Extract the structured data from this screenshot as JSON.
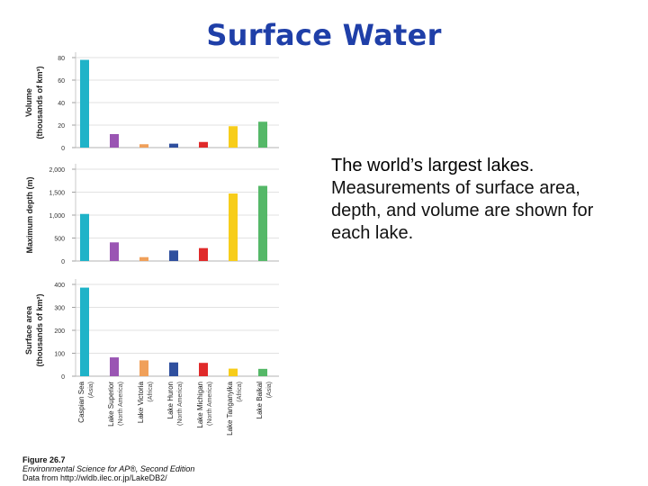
{
  "slide": {
    "title": "Surface Water",
    "text_heading": "The world’s largest lakes.",
    "text_body": "Measurements of surface area, depth, and volume are shown for each lake."
  },
  "caption": {
    "figure": "Figure 26.7",
    "book": "Environmental Science for AP®, Second Edition",
    "source": "Data from http://wldb.ilec.or.jp/LakeDB2/"
  },
  "chart_data": {
    "type": "bar",
    "categories": [
      {
        "name": "Caspian Sea",
        "region": "(Asia)",
        "color": "#1fb3c8"
      },
      {
        "name": "Lake Superior",
        "region": "(North America)",
        "color": "#9a55b3"
      },
      {
        "name": "Lake Victoria",
        "region": "(Africa)",
        "color": "#f0a05a"
      },
      {
        "name": "Lake Huron",
        "region": "(North America)",
        "color": "#2f4f9e"
      },
      {
        "name": "Lake Michigan",
        "region": "(North America)",
        "color": "#e02a2a"
      },
      {
        "name": "Lake Tanganyika",
        "region": "(Africa)",
        "color": "#f7cd1a"
      },
      {
        "name": "Lake Baikal",
        "region": "(Asia)",
        "color": "#55b868"
      }
    ],
    "panels": [
      {
        "id": "volume",
        "ylabel": "Volume",
        "ylabel2": "(thousands of km³)",
        "ylim": [
          0,
          80
        ],
        "ticks": [
          "0",
          "20",
          "40",
          "60",
          "80"
        ],
        "tick_values": [
          0,
          20,
          40,
          60,
          80
        ],
        "values": [
          78,
          12,
          3,
          3.5,
          5,
          19,
          23
        ]
      },
      {
        "id": "depth",
        "ylabel": "Maximum depth (m)",
        "ylabel2": "",
        "ylim": [
          0,
          2000
        ],
        "ticks": [
          "0",
          "500",
          "1,000",
          "1,500",
          "2,000"
        ],
        "tick_values": [
          0,
          500,
          1000,
          1500,
          2000
        ],
        "values": [
          1025,
          406,
          84,
          229,
          281,
          1470,
          1637
        ]
      },
      {
        "id": "area",
        "ylabel": "Surface area",
        "ylabel2": "(thousands of km²)",
        "ylim": [
          0,
          400
        ],
        "ticks": [
          "0",
          "100",
          "200",
          "300",
          "400"
        ],
        "tick_values": [
          0,
          100,
          200,
          300,
          400
        ],
        "values": [
          386,
          82,
          69,
          60,
          58,
          33,
          32
        ]
      }
    ]
  }
}
